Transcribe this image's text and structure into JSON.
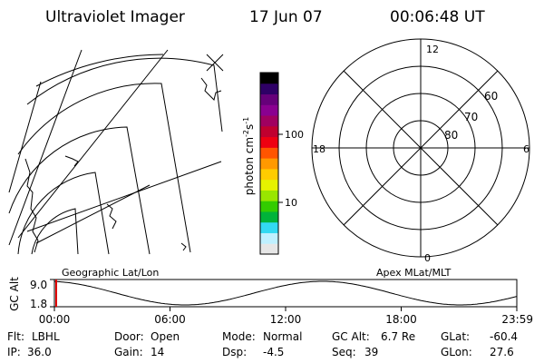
{
  "header": {
    "title": "Ultraviolet Imager",
    "date": "17 Jun 07",
    "time": "00:06:48 UT"
  },
  "left_panel": {
    "caption": "Geographic Lat/Lon"
  },
  "colorbar": {
    "unit": "photon cm",
    "exp1": "-2",
    "s": "s",
    "exp2": "-1",
    "ticks": [
      {
        "label": "100",
        "frac": 0.66
      },
      {
        "label": "10",
        "frac": 0.285
      }
    ],
    "colors": [
      "#e6e6e6",
      "#bff0ff",
      "#33d9f2",
      "#00b33a",
      "#33cc00",
      "#99e600",
      "#e6f200",
      "#ffcc00",
      "#ff9900",
      "#ff5500",
      "#ee0011",
      "#c0002f",
      "#a00060",
      "#8a0090",
      "#66007a",
      "#2e0066",
      "#000000"
    ]
  },
  "right_panel": {
    "caption": "Apex MLat/MLT",
    "mlt_labels": {
      "top": "12",
      "left": "18",
      "right": "6",
      "bottom": "0"
    },
    "lat_labels": [
      "60",
      "70",
      "80"
    ]
  },
  "altitude_plot": {
    "ylabel": "GC Alt",
    "yticks": [
      "9.0",
      "1.8"
    ],
    "xticks": [
      "00:00",
      "06:00",
      "12:00",
      "18:00",
      "23:59"
    ],
    "marker_color": "#e00000"
  },
  "status": {
    "flt_label": "Flt:",
    "flt": "LBHL",
    "ip_label": "IP:",
    "ip": "36.0",
    "door_label": "Door:",
    "door": "Open",
    "gain_label": "Gain:",
    "gain": "14",
    "mode_label": "Mode:",
    "mode": "Normal",
    "dsp_label": "Dsp:",
    "dsp": "-4.5",
    "gcalt_label": "GC Alt:",
    "gcalt": "6.7 Re",
    "seq_label": "Seq:",
    "seq": "39",
    "glat_label": "GLat:",
    "glat": "-60.4",
    "glon_label": "GLon:",
    "glon": "27.6"
  }
}
